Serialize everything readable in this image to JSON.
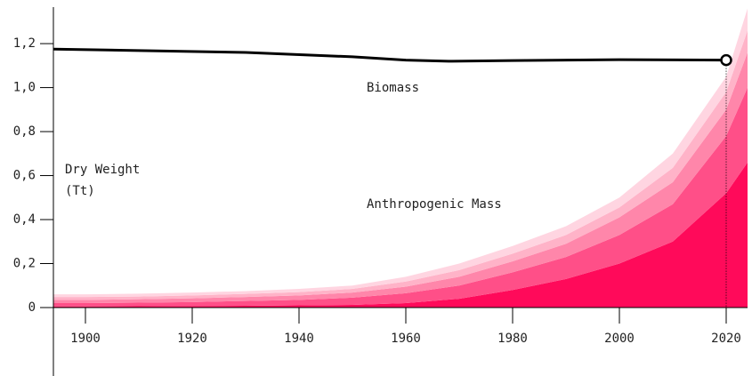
{
  "chart_data": {
    "type": "stacked_area_line",
    "ylabel_lines": [
      "Dry Weight",
      "(Tt)"
    ],
    "annotations": [
      "Biomass",
      "Anthropogenic Mass"
    ],
    "xlim": [
      1894,
      2024
    ],
    "ylim": [
      0,
      1.366
    ],
    "xticks": [
      1900,
      1920,
      1940,
      1960,
      1980,
      2000,
      2020
    ],
    "yticks": [
      0,
      {
        "value": 0.2,
        "label": "0,2"
      },
      {
        "value": 0.4,
        "label": "0,4"
      },
      {
        "value": 0.6,
        "label": "0,6"
      },
      {
        "value": 0.8,
        "label": "0,8"
      },
      {
        "value": 1.0,
        "label": "1,0"
      },
      {
        "value": 1.2,
        "label": "1,2"
      }
    ],
    "x": [
      1894,
      1900,
      1910,
      1920,
      1930,
      1940,
      1950,
      1960,
      1970,
      1980,
      1990,
      2000,
      2010,
      2020,
      2024
    ],
    "series": [
      {
        "color": "#ff0a5a",
        "values": [
          0.005,
          0.005,
          0.006,
          0.007,
          0.008,
          0.01,
          0.012,
          0.02,
          0.04,
          0.08,
          0.13,
          0.2,
          0.3,
          0.52,
          0.66
        ]
      },
      {
        "color": "#ff4f88",
        "values": [
          0.015,
          0.015,
          0.016,
          0.018,
          0.022,
          0.025,
          0.033,
          0.045,
          0.06,
          0.08,
          0.1,
          0.13,
          0.17,
          0.26,
          0.34
        ]
      },
      {
        "color": "#ff86aa",
        "values": [
          0.015,
          0.015,
          0.016,
          0.017,
          0.018,
          0.02,
          0.023,
          0.03,
          0.04,
          0.05,
          0.06,
          0.08,
          0.1,
          0.12,
          0.16
        ]
      },
      {
        "color": "#ffb3c8",
        "values": [
          0.013,
          0.013,
          0.012,
          0.013,
          0.014,
          0.015,
          0.017,
          0.023,
          0.03,
          0.035,
          0.04,
          0.045,
          0.065,
          0.08,
          0.1
        ]
      },
      {
        "color": "#ffd5e1",
        "values": [
          0.012,
          0.012,
          0.013,
          0.013,
          0.013,
          0.015,
          0.015,
          0.022,
          0.03,
          0.035,
          0.04,
          0.045,
          0.065,
          0.07,
          0.1
        ]
      }
    ],
    "line": {
      "color": "#000000",
      "x": [
        1894,
        1930,
        1950,
        1960,
        1968,
        1980,
        2000,
        2020
      ],
      "values": [
        1.175,
        1.16,
        1.14,
        1.125,
        1.12,
        1.123,
        1.127,
        1.125
      ]
    }
  }
}
